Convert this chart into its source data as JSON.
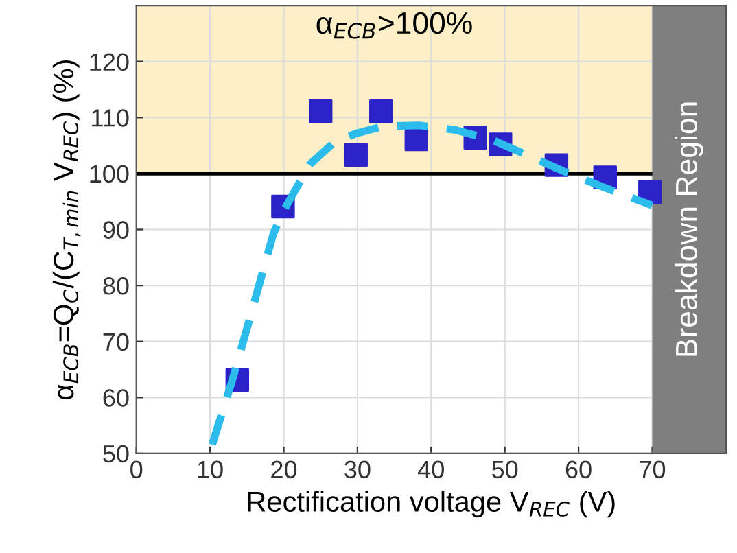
{
  "chart_data": {
    "type": "scatter",
    "xlabel": "Rectification voltage V$_{REC}$ (V)",
    "ylabel": "α$_{ECB}$=Q$_{C}$/(C$_{T,min}$ V$_{REC}$) (%)",
    "xlim": [
      0,
      80
    ],
    "ylim": [
      50,
      130
    ],
    "xticks": [
      0,
      10,
      20,
      30,
      40,
      50,
      60,
      70
    ],
    "yticks": [
      50,
      60,
      70,
      80,
      90,
      100,
      110,
      120
    ],
    "grid": true,
    "series": [
      {
        "color": "#2b23c8",
        "marker": "square",
        "x": [
          13.7,
          19.9,
          25.0,
          29.8,
          33.2,
          38.0,
          46.0,
          49.4,
          57.0,
          63.6,
          69.7
        ],
        "values": [
          63.1,
          94.1,
          111.1,
          103.3,
          111.1,
          106.1,
          106.4,
          105.2,
          101.5,
          99.3,
          96.7
        ]
      },
      {
        "type": "line",
        "color": "#2bbcec",
        "line_style": "dashed",
        "marker": "none",
        "x": [
          10.3,
          13.0,
          15.5,
          18.6,
          20,
          23.5,
          26.6,
          29.7,
          33.4,
          38.3,
          43.2,
          48.1,
          53.0,
          58,
          63.5,
          70
        ],
        "values": [
          51.6,
          63,
          74.6,
          89.3,
          93.4,
          101.6,
          105.3,
          107.1,
          108.4,
          108.6,
          107.8,
          106.1,
          103.3,
          100.4,
          97.5,
          94.3
        ]
      }
    ],
    "ref_lines": [
      {
        "axis": "y",
        "value": 100,
        "color": "#000000"
      }
    ],
    "bands": [
      {
        "axis": "y",
        "from": 100,
        "to": 130,
        "label": "α$_{ECB}$>100%",
        "color": "#fdefc8"
      },
      {
        "axis": "x",
        "from": 70,
        "to": 80,
        "label": "Breakdown Region",
        "color": "#7f7f7f"
      }
    ]
  }
}
